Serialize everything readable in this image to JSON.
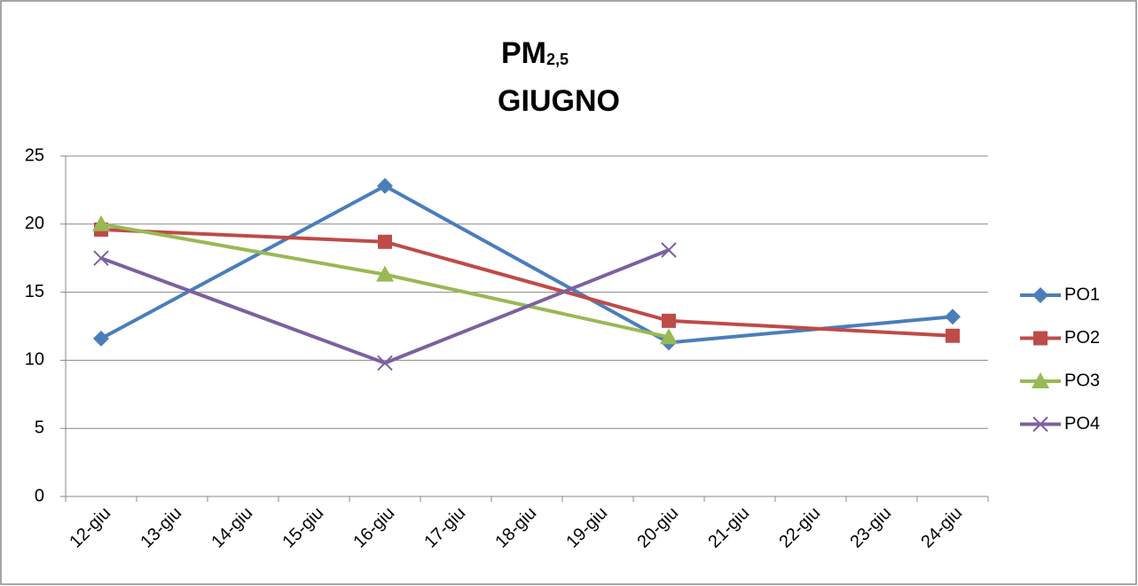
{
  "chart_data": {
    "type": "line",
    "title": "PM",
    "title_subscript": "2,5",
    "subtitle": "GIUGNO",
    "categories": [
      "12-giu",
      "13-giu",
      "14-giu",
      "15-giu",
      "16-giu",
      "17-giu",
      "18-giu",
      "19-giu",
      "20-giu",
      "21-giu",
      "22-giu",
      "23-giu",
      "24-giu"
    ],
    "series": [
      {
        "name": "PO1",
        "color": "#4a7ebb",
        "marker": "diamond",
        "values": [
          11.6,
          null,
          null,
          null,
          22.8,
          null,
          null,
          null,
          11.3,
          null,
          null,
          null,
          13.2
        ]
      },
      {
        "name": "PO2",
        "color": "#be4b48",
        "marker": "square",
        "values": [
          19.6,
          null,
          null,
          null,
          18.7,
          null,
          null,
          null,
          12.9,
          null,
          null,
          null,
          11.8
        ]
      },
      {
        "name": "PO3",
        "color": "#98b954",
        "marker": "triangle",
        "values": [
          20.0,
          null,
          null,
          null,
          16.3,
          null,
          null,
          null,
          11.7,
          null,
          null,
          null,
          null
        ]
      },
      {
        "name": "PO4",
        "color": "#7d60a0",
        "marker": "x",
        "values": [
          17.5,
          null,
          null,
          null,
          9.8,
          null,
          null,
          null,
          18.1,
          null,
          null,
          null,
          null
        ]
      }
    ],
    "connect_gaps": true,
    "ylim": [
      0,
      25
    ],
    "yticks": [
      0,
      5,
      10,
      15,
      20,
      25
    ],
    "grid": true,
    "legend": "right"
  }
}
